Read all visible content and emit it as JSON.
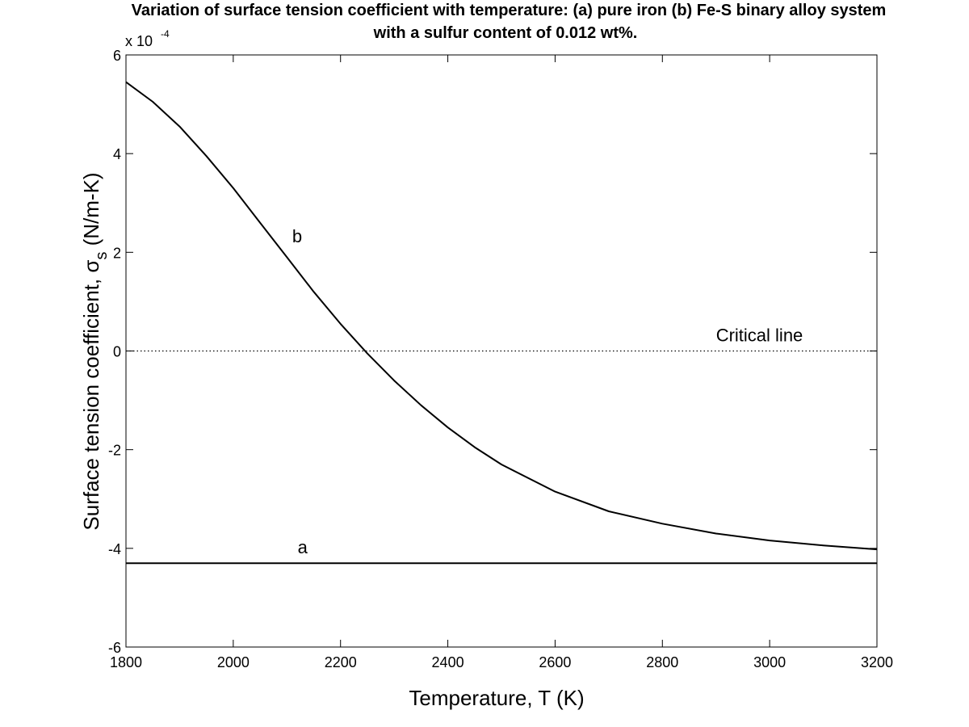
{
  "chart_data": {
    "type": "line",
    "title_line1": "Variation of surface tension coefficient with temperature: (a) pure iron (b) Fe-S binary alloy system",
    "title_line2": "with a sulfur content of 0.012 wt%.",
    "xlabel": "Temperature, T (K)",
    "ylabel_main": "Surface tension coefficient, ",
    "ylabel_symbol": "σ",
    "ylabel_sub": "s",
    "ylabel_unit": "  (N/m-K)",
    "y_scale_label": "x 10",
    "y_scale_exp": "-4",
    "xlim": [
      1800,
      3200
    ],
    "ylim": [
      -6,
      6
    ],
    "x_ticks": [
      1800,
      2000,
      2200,
      2400,
      2600,
      2800,
      3000,
      3200
    ],
    "y_ticks": [
      -6,
      -4,
      -2,
      0,
      2,
      4,
      6
    ],
    "series": [
      {
        "name": "a",
        "label": "a",
        "label_at": [
          2120,
          -4.1
        ],
        "points": [
          [
            1800,
            -4.3
          ],
          [
            3200,
            -4.3
          ]
        ]
      },
      {
        "name": "b",
        "label": "b",
        "label_at": [
          2110,
          2.2
        ],
        "points": [
          [
            1800,
            5.45
          ],
          [
            1850,
            5.05
          ],
          [
            1900,
            4.55
          ],
          [
            1950,
            3.95
          ],
          [
            2000,
            3.3
          ],
          [
            2050,
            2.6
          ],
          [
            2100,
            1.9
          ],
          [
            2150,
            1.2
          ],
          [
            2200,
            0.55
          ],
          [
            2250,
            -0.05
          ],
          [
            2300,
            -0.6
          ],
          [
            2350,
            -1.1
          ],
          [
            2400,
            -1.55
          ],
          [
            2450,
            -1.95
          ],
          [
            2500,
            -2.3
          ],
          [
            2600,
            -2.85
          ],
          [
            2700,
            -3.25
          ],
          [
            2800,
            -3.5
          ],
          [
            2900,
            -3.7
          ],
          [
            3000,
            -3.84
          ],
          [
            3100,
            -3.94
          ],
          [
            3200,
            -4.02
          ]
        ]
      }
    ],
    "critical_line": {
      "label": "Critical line",
      "y": 0,
      "label_at": [
        2900,
        0.2
      ]
    }
  }
}
